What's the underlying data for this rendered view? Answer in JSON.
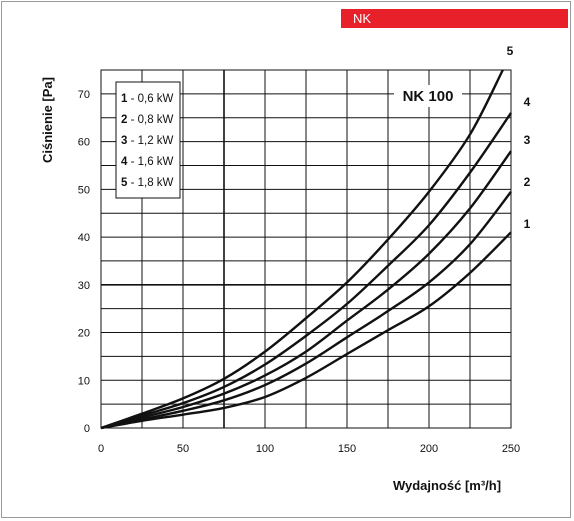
{
  "header": {
    "tag": "NK"
  },
  "chart_data": {
    "type": "line",
    "title": "NK 100",
    "xlabel": "Wydajność [m³/h]",
    "ylabel": "Ciśnienie [Pa]",
    "xlim": [
      0,
      250
    ],
    "ylim": [
      0,
      75
    ],
    "x_ticks": [
      0,
      50,
      100,
      150,
      200,
      250
    ],
    "y_ticks": [
      0,
      10,
      20,
      30,
      40,
      50,
      60,
      70
    ],
    "grid": true,
    "legend_position": "top-left",
    "legend": [
      {
        "num": "1",
        "text": "- 0,6 kW"
      },
      {
        "num": "2",
        "text": "- 0,8 kW"
      },
      {
        "num": "3",
        "text": "- 1,2 kW"
      },
      {
        "num": "4",
        "text": "- 1,6 kW"
      },
      {
        "num": "5",
        "text": "- 1,8 kW"
      }
    ],
    "series": [
      {
        "name": "1",
        "x": [
          0,
          25,
          50,
          75,
          100,
          125,
          150,
          175,
          200,
          225,
          250
        ],
        "y": [
          0,
          1.5,
          2.8,
          4.2,
          6.5,
          10.5,
          15.5,
          20.5,
          25.5,
          32.5,
          41
        ]
      },
      {
        "name": "2",
        "x": [
          0,
          25,
          50,
          75,
          100,
          125,
          150,
          175,
          200,
          225,
          250
        ],
        "y": [
          0,
          1.8,
          3.6,
          5.8,
          9,
          13.5,
          19,
          24.5,
          30.5,
          38.5,
          49.5
        ]
      },
      {
        "name": "3",
        "x": [
          0,
          25,
          50,
          75,
          100,
          125,
          150,
          175,
          200,
          225,
          250
        ],
        "y": [
          0,
          2.2,
          4.4,
          7.2,
          11,
          16,
          22.5,
          29,
          36.5,
          46,
          58
        ]
      },
      {
        "name": "4",
        "x": [
          0,
          25,
          50,
          75,
          100,
          125,
          150,
          175,
          200,
          225,
          250
        ],
        "y": [
          0,
          2.6,
          5.2,
          8.6,
          13.3,
          19.3,
          26,
          34,
          42.5,
          53.5,
          66
        ]
      },
      {
        "name": "5",
        "x": [
          0,
          25,
          50,
          75,
          100,
          125,
          150,
          175,
          200,
          225,
          245
        ],
        "y": [
          0,
          3,
          6.2,
          10.3,
          16,
          23,
          30.5,
          39.5,
          49.5,
          61.5,
          75
        ]
      }
    ]
  }
}
